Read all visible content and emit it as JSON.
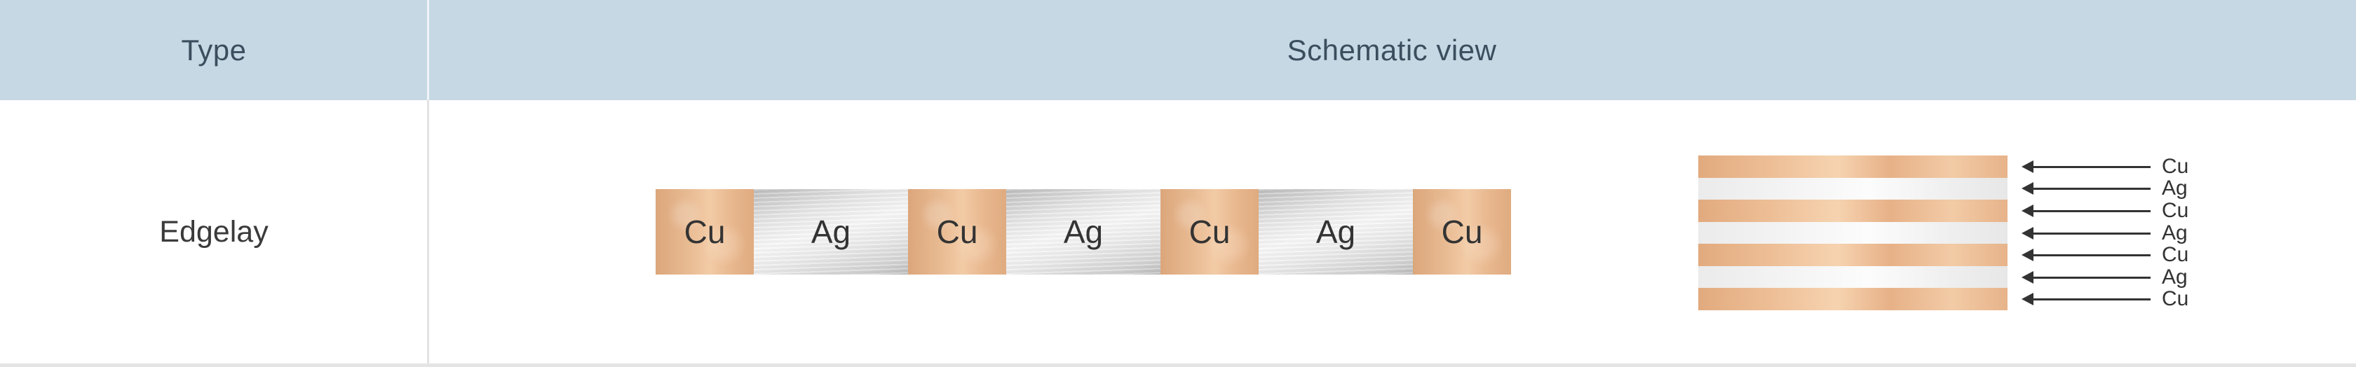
{
  "table": {
    "header": {
      "type_label": "Type",
      "schematic_label": "Schematic view"
    },
    "row": {
      "type_value": "Edgelay"
    }
  },
  "bar_schematic": {
    "segments": [
      {
        "material": "Cu"
      },
      {
        "material": "Ag"
      },
      {
        "material": "Cu"
      },
      {
        "material": "Ag"
      },
      {
        "material": "Cu"
      },
      {
        "material": "Ag"
      },
      {
        "material": "Cu"
      }
    ]
  },
  "stack_schematic": {
    "layers": [
      {
        "material": "Cu"
      },
      {
        "material": "Ag"
      },
      {
        "material": "Cu"
      },
      {
        "material": "Ag"
      },
      {
        "material": "Cu"
      },
      {
        "material": "Ag"
      },
      {
        "material": "Cu"
      }
    ]
  },
  "colors": {
    "header_bg": "#c6d8e4",
    "header_text": "#3b4e5e",
    "body_text": "#3a3a3a",
    "copper": "#e9b88e",
    "silver": "#e6e6e6",
    "arrow": "#333333",
    "divider": "#e2e2e2"
  }
}
